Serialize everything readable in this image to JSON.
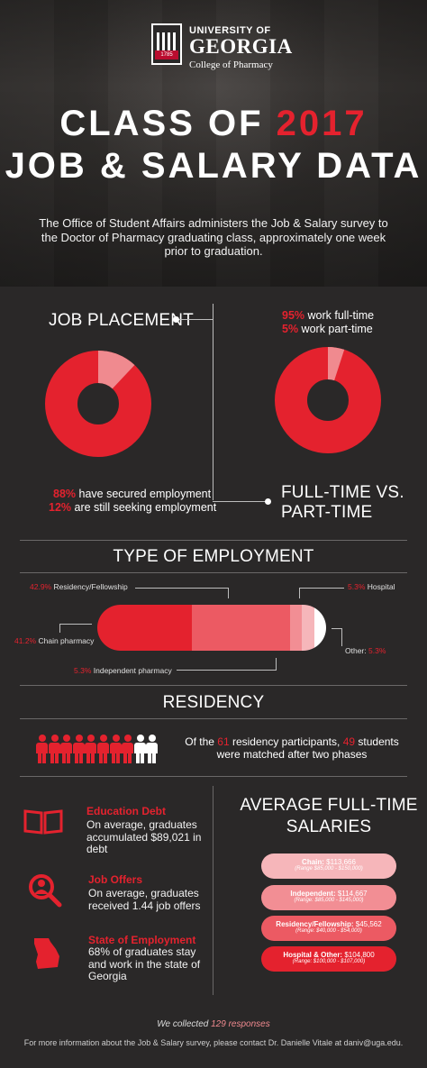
{
  "header": {
    "university": "UNIVERSITY OF",
    "georgia": "GEORGIA",
    "college": "College of Pharmacy",
    "seal_year": "1785",
    "title_prefix": "CLASS OF ",
    "title_year": "2017",
    "title_line2": "JOB & SALARY DATA",
    "intro": "The Office of Student Affairs administers the Job & Salary survey to the Doctor of Pharmacy graduating class, approximately one week prior to graduation."
  },
  "job_placement": {
    "title": "JOB PLACEMENT",
    "secured_pct": "88%",
    "secured_text": " have secured employment",
    "seeking_pct": "12%",
    "seeking_text": " are still seeking employment",
    "donut": {
      "secured": 88,
      "seeking": 12
    }
  },
  "fulltime": {
    "title_line1": "FULL-TIME VS.",
    "title_line2": "PART-TIME",
    "full_pct": "95%",
    "full_text": " work full-time",
    "part_pct": "5%",
    "part_text": " work part-time",
    "donut": {
      "full": 95,
      "part": 5
    }
  },
  "employment_type": {
    "title": "TYPE OF EMPLOYMENT",
    "segments": [
      {
        "label": "Chain pharmacy",
        "pct": "41.2%",
        "value": 41.2,
        "color": "#e4222e"
      },
      {
        "label": "Residency/Fellowship",
        "pct": "42.9%",
        "value": 42.9,
        "color": "#ec5a63"
      },
      {
        "label": "Independent pharmacy",
        "pct": "5.3%",
        "value": 5.3,
        "color": "#f28e94"
      },
      {
        "label": "Hospital",
        "pct": "5.3%",
        "value": 5.3,
        "color": "#f6b6ba"
      },
      {
        "label": "Other:",
        "pct": "5.3%",
        "value": 5.3,
        "color": "#ffffff"
      }
    ]
  },
  "residency": {
    "title": "RESIDENCY",
    "text_prefix": "Of the ",
    "participants": "61",
    "text_mid": " residency participants, ",
    "matched": "49",
    "text_suffix": " students",
    "text_line2": "were matched after two phases",
    "people_red": 8,
    "people_white": 2
  },
  "info": {
    "debt_title": "Education Debt",
    "debt_text": "On average, graduates accumulated $89,021 in debt",
    "offers_title": "Job Offers",
    "offers_text": "On average, graduates received 1.44 job offers",
    "state_title": "State of Employment",
    "state_text": "68% of graduates stay and work in the state of Georgia"
  },
  "salaries": {
    "title_line1": "AVERAGE FULL-TIME",
    "title_line2": "SALARIES",
    "items": [
      {
        "name": "Chain:",
        "value": " $113,666",
        "range": "(Range $85,000 - $150,000)",
        "bg": "#f6b6ba",
        "fg": "#ffffff"
      },
      {
        "name": "Independent:",
        "value": " $114,667",
        "range": "(Range: $85,000 - $145,000)",
        "bg": "#f28e94",
        "fg": "#ffffff"
      },
      {
        "name": "Residency/Fellowship:",
        "value": " $45,562",
        "range": "(Range: $40,000 - $54,000)",
        "bg": "#ec5a63",
        "fg": "#ffffff"
      },
      {
        "name": "Hospital & Other:",
        "value": " $104,800",
        "range": "(Range: $100,000 - $107,000)",
        "bg": "#e4222e",
        "fg": "#ffffff"
      }
    ]
  },
  "footer": {
    "collected_prefix": "We collected ",
    "collected_count": "129 responses",
    "contact": "For more information about the Job & Salary survey, please contact Dr. Danielle Vitale at daniv@uga.edu."
  }
}
